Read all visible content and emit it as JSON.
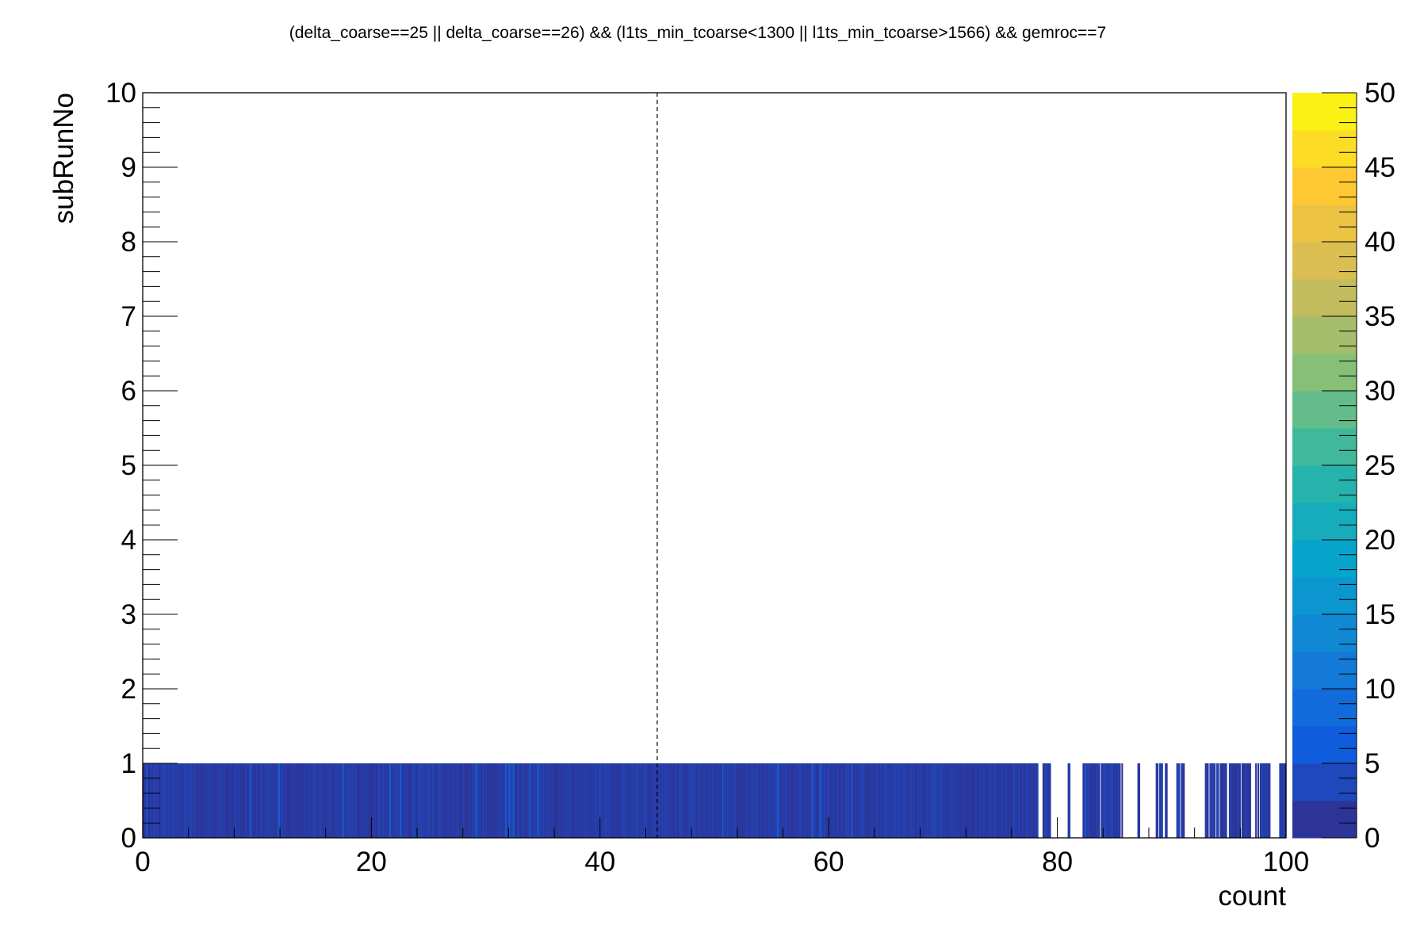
{
  "chart_data": {
    "type": "heatmap",
    "title": "(delta_coarse==25 || delta_coarse==26) && (l1ts_min_tcoarse<1300 || l1ts_min_tcoarse>1566) && gemroc==7",
    "xlabel": "count",
    "ylabel": "subRunNo",
    "xlim": [
      0,
      100
    ],
    "ylim": [
      0,
      10
    ],
    "x_ticks": [
      "0",
      "20",
      "40",
      "60",
      "80",
      "100"
    ],
    "y_ticks": [
      "0",
      "1",
      "2",
      "3",
      "4",
      "5",
      "6",
      "7",
      "8",
      "9",
      "10"
    ],
    "z_ticks": [
      "0",
      "5",
      "10",
      "15",
      "20",
      "25",
      "30",
      "35",
      "40",
      "45",
      "50"
    ],
    "zlim": [
      0,
      50
    ],
    "dashed_marker_x": 45,
    "filled_y_range": [
      0,
      1
    ],
    "bins": {
      "x_start": 0,
      "x_end": 100,
      "bin_width": 0.1,
      "dominant_value": 2,
      "sparse_from_x": 78,
      "empty_x_ranges": [
        [
          78.3,
          78.5
        ],
        [
          79.4,
          80.9
        ],
        [
          81.1,
          82.2
        ],
        [
          85.7,
          87.0
        ],
        [
          87.3,
          88.5
        ],
        [
          89.6,
          90.4
        ],
        [
          91.1,
          92.9
        ],
        [
          96.9,
          97.3
        ],
        [
          98.6,
          99.3
        ]
      ]
    },
    "palette": [
      "#352a87",
      "#0f5cdd",
      "#1481d6",
      "#06a4ca",
      "#2eb7a4",
      "#87bf77",
      "#d1bb59",
      "#fec832",
      "#f9fb0e"
    ]
  }
}
